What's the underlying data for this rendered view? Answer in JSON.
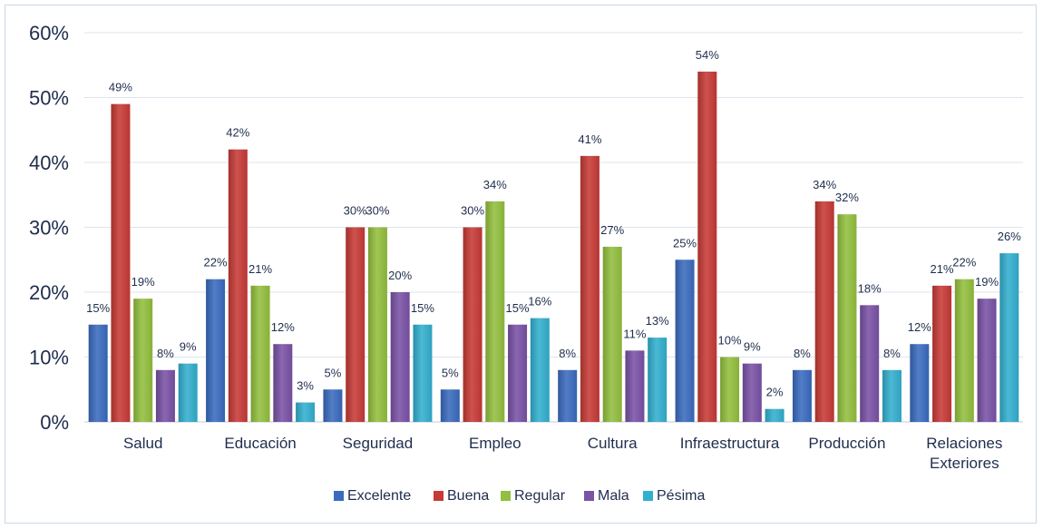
{
  "chart_data": {
    "type": "bar",
    "title": "",
    "xlabel": "",
    "ylabel": "",
    "ylim": [
      0,
      0.6
    ],
    "yticks": [
      0,
      0.1,
      0.2,
      0.3,
      0.4,
      0.5,
      0.6
    ],
    "ytick_labels": [
      "0%",
      "10%",
      "20%",
      "30%",
      "40%",
      "50%",
      "60%"
    ],
    "grid": true,
    "legend_position": "bottom",
    "categories": [
      "Salud",
      "Educación",
      "Seguridad",
      "Empleo",
      "Cultura",
      "Infraestructura",
      "Producción",
      "Relaciones Exteriores"
    ],
    "series": [
      {
        "name": "Excelente",
        "color": "#3a6bbf",
        "values": [
          0.15,
          0.22,
          0.05,
          0.05,
          0.08,
          0.25,
          0.08,
          0.12
        ],
        "labels": [
          "15%",
          "22%",
          "5%",
          "5%",
          "8%",
          "25%",
          "8%",
          "12%"
        ]
      },
      {
        "name": "Buena",
        "color": "#c73a36",
        "values": [
          0.49,
          0.42,
          0.3,
          0.3,
          0.41,
          0.54,
          0.34,
          0.21
        ],
        "labels": [
          "49%",
          "42%",
          "30%",
          "30%",
          "41%",
          "54%",
          "34%",
          "21%"
        ]
      },
      {
        "name": "Regular",
        "color": "#93bf3e",
        "values": [
          0.19,
          0.21,
          0.3,
          0.34,
          0.27,
          0.1,
          0.32,
          0.22
        ],
        "labels": [
          "19%",
          "21%",
          "30%",
          "34%",
          "27%",
          "10%",
          "32%",
          "22%"
        ]
      },
      {
        "name": "Mala",
        "color": "#7a52a6",
        "values": [
          0.08,
          0.12,
          0.2,
          0.15,
          0.11,
          0.09,
          0.18,
          0.19
        ],
        "labels": [
          "8%",
          "12%",
          "20%",
          "15%",
          "11%",
          "9%",
          "18%",
          "19%"
        ]
      },
      {
        "name": "Pésima",
        "color": "#33afcf",
        "values": [
          0.09,
          0.03,
          0.15,
          0.16,
          0.13,
          0.02,
          0.08,
          0.26
        ],
        "labels": [
          "9%",
          "3%",
          "15%",
          "16%",
          "13%",
          "2%",
          "8%",
          "26%"
        ]
      }
    ]
  }
}
